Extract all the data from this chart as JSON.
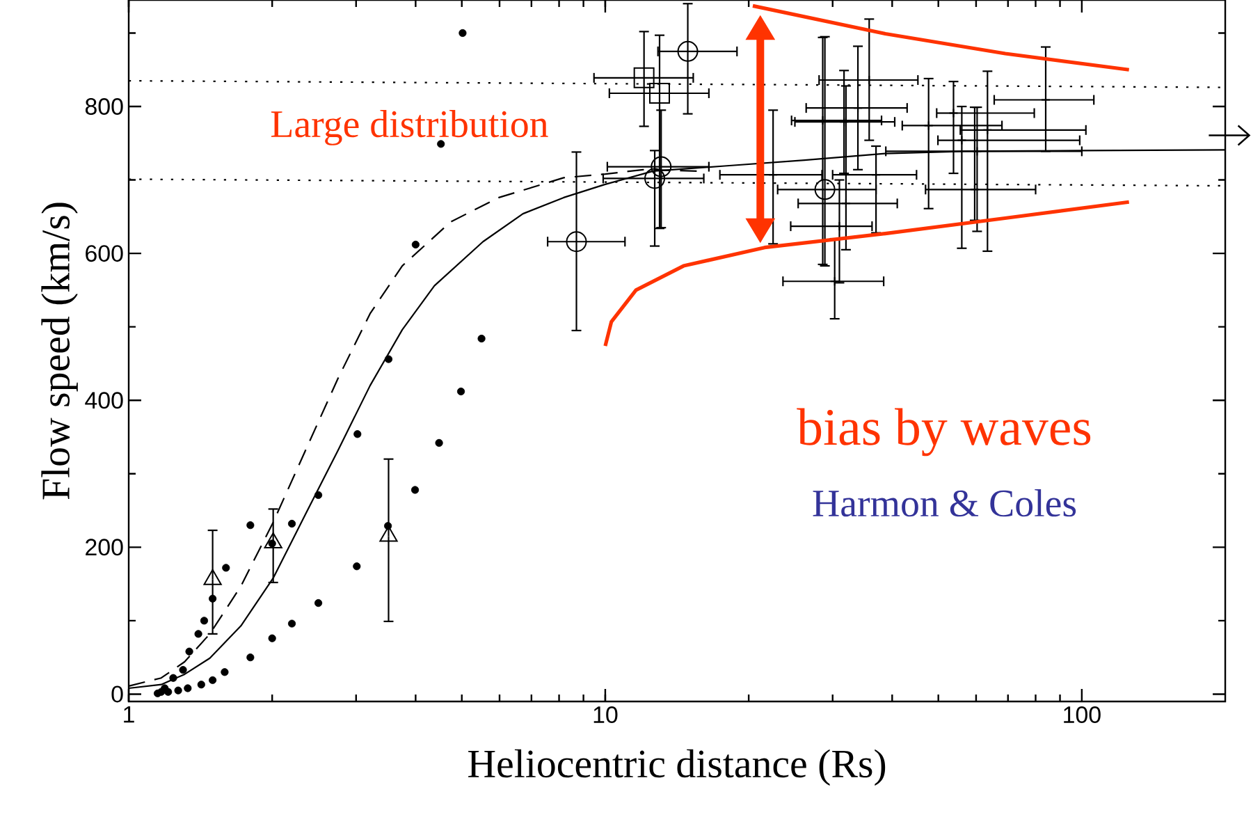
{
  "chart_data": {
    "type": "scatter",
    "xlabel": "Heliocentric distance (Rs)",
    "ylabel": "Flow speed (km/s)",
    "log": "x",
    "xlim": [
      1,
      200
    ],
    "ylim": [
      -10,
      945
    ],
    "xticks": [
      1,
      10,
      100
    ],
    "yticks": [
      0,
      {
        "value": 100,
        "label": null
      },
      200,
      {
        "value": 300,
        "label": null
      },
      400,
      {
        "value": 500,
        "label": null
      },
      600,
      {
        "value": 700,
        "label": null
      },
      800,
      {
        "value": 900,
        "label": null
      }
    ],
    "annotations": [
      "Large distribution",
      "bias by waves",
      "Harmon & Coles"
    ],
    "series": [
      {
        "type": "line",
        "color": "#000000",
        "line_style": "solid",
        "marker": "none",
        "x": [
          1,
          1.17,
          1.31,
          1.48,
          1.72,
          2.01,
          2.35,
          2.75,
          3.21,
          3.75,
          4.38,
          5.54,
          6.72,
          8.18,
          10,
          12.6,
          17.8,
          26.2,
          38.7,
          57,
          100,
          200
        ],
        "values": [
          8,
          13,
          27,
          49,
          93,
          158,
          245,
          332,
          420,
          496,
          556,
          616,
          654,
          676,
          694,
          712,
          719,
          727,
          736,
          739,
          740,
          741
        ]
      },
      {
        "type": "line",
        "color": "#000000",
        "line_style": "dashed",
        "marker": "none",
        "x": [
          1,
          1.17,
          1.31,
          1.48,
          1.72,
          2.01,
          2.35,
          2.75,
          3.21,
          3.75,
          4.74,
          5.98,
          8.18,
          10,
          12,
          15.8
        ],
        "values": [
          11,
          22,
          44,
          82,
          147,
          234,
          332,
          430,
          518,
          583,
          643,
          676,
          703,
          708,
          714,
          712
        ]
      },
      {
        "type": "line",
        "color": "#000000",
        "line_style": "dotted",
        "marker": "none",
        "x": [
          1,
          200
        ],
        "values": [
          835,
          826
        ]
      },
      {
        "type": "line",
        "color": "#000000",
        "line_style": "dotted",
        "marker": "none",
        "x": [
          1,
          200
        ],
        "values": [
          701,
          692
        ]
      },
      {
        "color": "#000000",
        "marker": "circle",
        "x": [
          1.15,
          1.17,
          1.19,
          1.21,
          1.24,
          1.27,
          1.3,
          1.33,
          1.34,
          1.4,
          1.42,
          1.44,
          1.5,
          1.5,
          1.59,
          1.6,
          1.8,
          1.8,
          2.0,
          2.0,
          2.2,
          2.2,
          2.5,
          2.5,
          3.01,
          3.02,
          3.5,
          3.51,
          3.99,
          4.0,
          4.48,
          4.52,
          4.98,
          5.02,
          5.5
        ],
        "values": [
          1,
          3,
          8,
          3,
          22,
          5,
          33,
          8,
          58,
          82,
          13,
          100,
          130,
          19,
          30,
          172,
          230,
          50,
          205,
          76,
          232,
          96,
          271,
          124,
          174,
          354,
          229,
          456,
          278,
          612,
          342,
          749,
          412,
          900,
          484
        ]
      },
      {
        "color": "#000000",
        "marker": "triangle",
        "x": [
          1.5,
          2.01,
          3.51
        ],
        "values": [
          156,
          206,
          215
        ],
        "errors": [
          [
            82,
            223
          ],
          [
            152,
            252
          ],
          [
            99,
            320
          ]
        ]
      },
      {
        "color": "#000000",
        "marker": "circle",
        "x": [
          8.7,
          12.7,
          13.1,
          14.9,
          28.9
        ],
        "values": [
          616,
          702,
          718,
          875,
          687
        ],
        "errors": [
          [
            495,
            738
          ],
          [
            610,
            740
          ],
          [
            635,
            795
          ],
          [
            790,
            940
          ],
          [
            583,
            895
          ]
        ],
        "xerrors": [
          [
            7.57,
            11.0
          ],
          [
            9.9,
            16.1
          ],
          [
            10.1,
            16.5
          ],
          [
            12.9,
            18.9
          ],
          [
            23,
            37
          ]
        ]
      },
      {
        "color": "#000000",
        "marker": "square",
        "x": [
          12.06,
          13.0
        ],
        "values": [
          839,
          818
        ],
        "errors": [
          [
            773,
            902
          ],
          [
            634,
            897
          ]
        ],
        "xerrors": [
          [
            9.47,
            15.3
          ],
          [
            10.2,
            16.5
          ]
        ]
      },
      {
        "color": "#000000",
        "marker": "cross",
        "x": [
          22.5,
          28.6,
          30.3,
          32,
          31,
          35.8,
          33.9,
          31.7,
          47.7,
          53.8,
          63.4,
          84,
          56,
          60.3,
          59.6,
          37
        ],
        "values": [
          707,
          781,
          562,
          668,
          637,
          836,
          798,
          779,
          774,
          791,
          768,
          809,
          754,
          739,
          687,
          707
        ],
        "errors": [
          [
            613,
            795
          ],
          [
            585,
            894
          ],
          [
            511,
            620
          ],
          [
            605,
            828
          ],
          [
            560,
            700
          ],
          [
            754,
            919
          ],
          [
            714,
            882
          ],
          [
            709,
            849
          ],
          [
            661,
            838
          ],
          [
            709,
            834
          ],
          [
            603,
            848
          ],
          [
            739,
            881
          ],
          [
            607,
            800
          ],
          [
            630,
            799
          ],
          [
            645,
            799
          ],
          [
            628,
            746
          ]
        ],
        "xerrors": [
          [
            17.4,
            28.5
          ],
          [
            24.6,
            38.0
          ],
          [
            23.6,
            38.4
          ],
          [
            25.4,
            41
          ],
          [
            24.5,
            36.3
          ],
          [
            28.1,
            45.3
          ],
          [
            26.4,
            43
          ],
          [
            25,
            40.5
          ],
          [
            42,
            68
          ],
          [
            49.6,
            79.5
          ],
          [
            55.6,
            102
          ],
          [
            65.5,
            106
          ],
          [
            49.9,
            99
          ],
          [
            38.8,
            100
          ],
          [
            47,
            80
          ],
          [
            30,
            45
          ]
        ]
      },
      {
        "type": "line",
        "color": "#ff3300",
        "line_style": "solid",
        "marker": "none",
        "x": [
          20.4,
          38.7,
          69.1,
          125.6
        ],
        "values": [
          937,
          899,
          872,
          850
        ]
      },
      {
        "type": "line",
        "color": "#ff3300",
        "line_style": "solid",
        "marker": "none",
        "x": [
          10,
          10.3,
          11.6,
          14.6,
          21.6,
          38.7,
          69,
          125.6
        ],
        "values": [
          474,
          507,
          550,
          583,
          608,
          627,
          648,
          670
        ]
      }
    ]
  }
}
